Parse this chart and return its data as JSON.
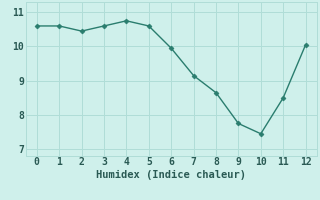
{
  "x": [
    0,
    1,
    2,
    3,
    4,
    5,
    6,
    7,
    8,
    9,
    10,
    11,
    12
  ],
  "y": [
    10.6,
    10.6,
    10.45,
    10.6,
    10.75,
    10.6,
    9.95,
    9.15,
    8.65,
    7.75,
    7.45,
    8.5,
    10.05
  ],
  "line_color": "#2a7d6e",
  "marker": "D",
  "marker_size": 2.5,
  "line_width": 1.0,
  "bg_color": "#cff0eb",
  "grid_color": "#b0ddd7",
  "xlabel": "Humidex (Indice chaleur)",
  "xlabel_fontsize": 7.5,
  "tick_fontsize": 7,
  "ylim": [
    6.8,
    11.3
  ],
  "xlim": [
    -0.5,
    12.5
  ],
  "yticks": [
    7,
    8,
    9,
    10,
    11
  ],
  "xticks": [
    0,
    1,
    2,
    3,
    4,
    5,
    6,
    7,
    8,
    9,
    10,
    11,
    12
  ]
}
